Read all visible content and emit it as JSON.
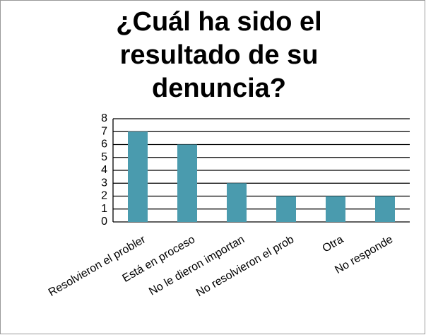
{
  "chart_data": {
    "type": "bar",
    "title": "¿Cuál ha sido el resultado de su denuncia?",
    "categories": [
      "Resolvieron el probler",
      "Está en proceso",
      "No le dieron importan",
      "No resolvieron el prob",
      "Otra",
      "No responde"
    ],
    "values": [
      7,
      6,
      3,
      2,
      2,
      2
    ],
    "color": "#4a9bae",
    "ylim": [
      0,
      8
    ],
    "yticks": [
      0,
      1,
      2,
      3,
      4,
      5,
      6,
      7,
      8
    ],
    "grid": true
  }
}
